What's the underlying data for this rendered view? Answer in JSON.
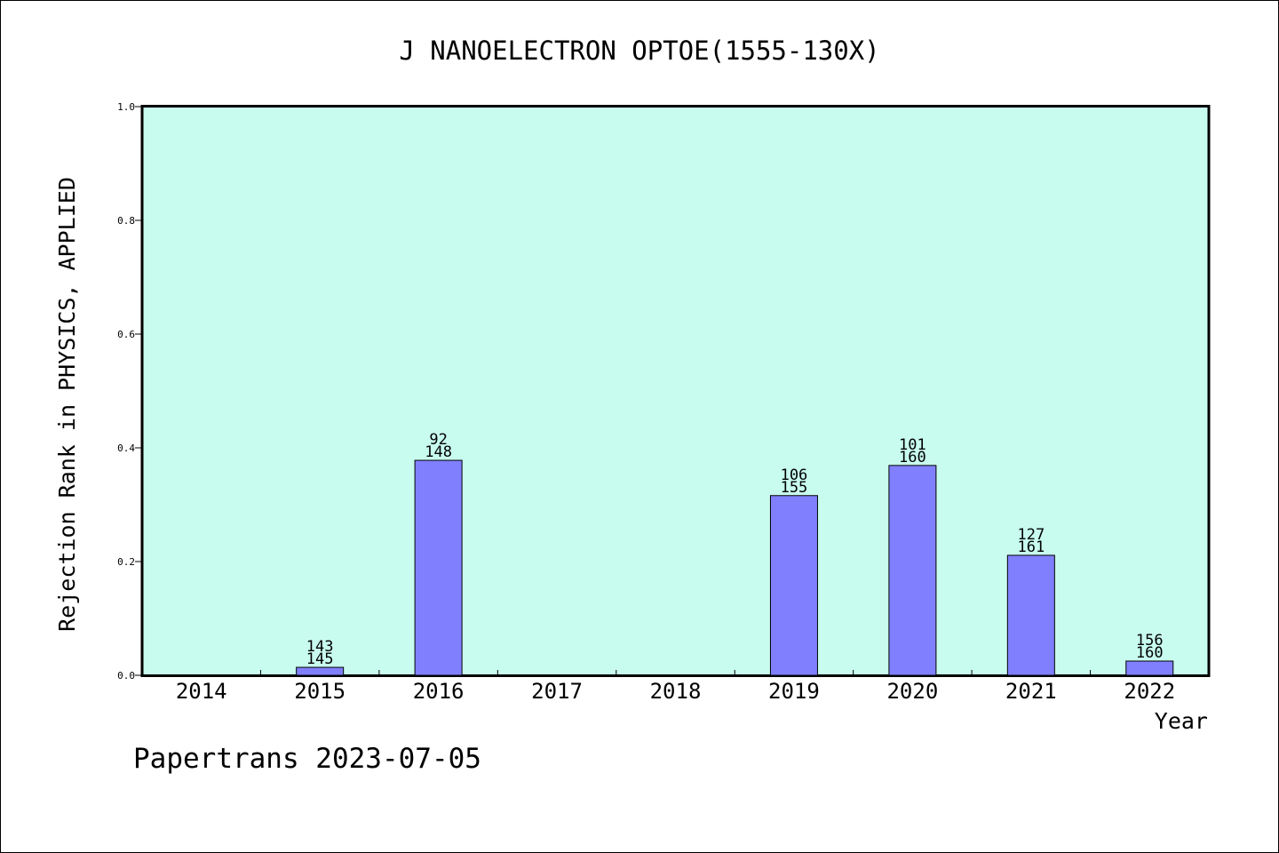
{
  "chart_data": {
    "type": "bar",
    "title": "J NANOELECTRON OPTOE(1555-130X)",
    "xlabel": "Year",
    "ylabel": "Rejection Rank in PHYSICS, APPLIED",
    "ylim": [
      0,
      1.0
    ],
    "yticks": [
      "0.0",
      "0.2",
      "0.4",
      "0.6",
      "0.8",
      "1.0"
    ],
    "categories": [
      "2014",
      "2015",
      "2016",
      "2017",
      "2018",
      "2019",
      "2020",
      "2021",
      "2022"
    ],
    "values": [
      0,
      0.014,
      0.378,
      0,
      0,
      0.316,
      0.369,
      0.211,
      0.025
    ],
    "label_top": [
      "",
      "143",
      "92",
      "",
      "",
      "106",
      "101",
      "127",
      "156"
    ],
    "label_bottom": [
      "",
      "145",
      "148",
      "",
      "",
      "155",
      "160",
      "161",
      "160"
    ],
    "grid": false,
    "colors": {
      "plot_background": "#c8fcee",
      "bar_fill": "#8080ff",
      "bar_stroke": "#000000"
    }
  },
  "footer": {
    "watermark": "Papertrans 2023-07-05"
  }
}
